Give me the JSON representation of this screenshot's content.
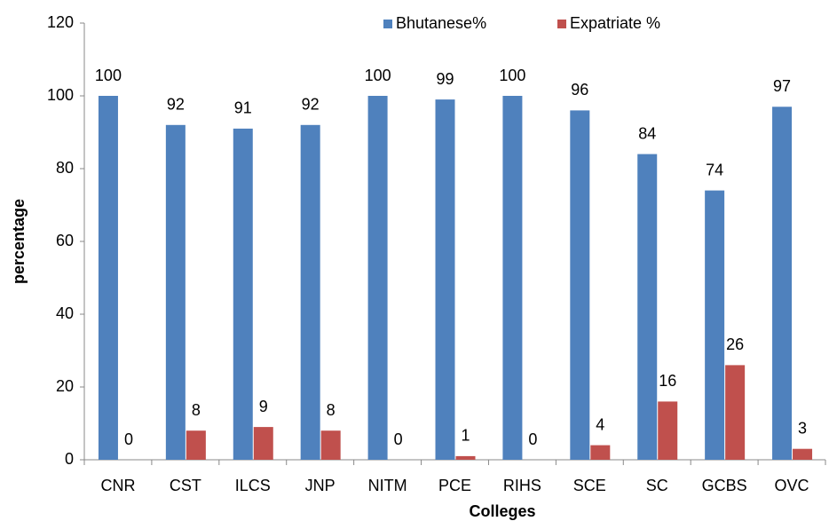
{
  "chart_data": {
    "type": "grouped_bar",
    "xlabel": "Colleges",
    "ylabel": "percentage",
    "categories": [
      "CNR",
      "CST",
      "ILCS",
      "JNP",
      "NITM",
      "PCE",
      "RIHS",
      "SCE",
      "SC",
      "GCBS",
      "OVC"
    ],
    "series": [
      {
        "name": "Bhutanese%",
        "color": "#4f81bd",
        "values": [
          100,
          92,
          91,
          92,
          100,
          99,
          100,
          96,
          84,
          74,
          97
        ]
      },
      {
        "name": "Expatriate %",
        "color": "#c0504d",
        "values": [
          0,
          8,
          9,
          8,
          0,
          1,
          0,
          4,
          16,
          26,
          3
        ]
      }
    ],
    "ylim": [
      0,
      120
    ],
    "yticks": [
      0,
      20,
      40,
      60,
      80,
      100,
      120
    ],
    "grid": false,
    "legend": "top"
  }
}
